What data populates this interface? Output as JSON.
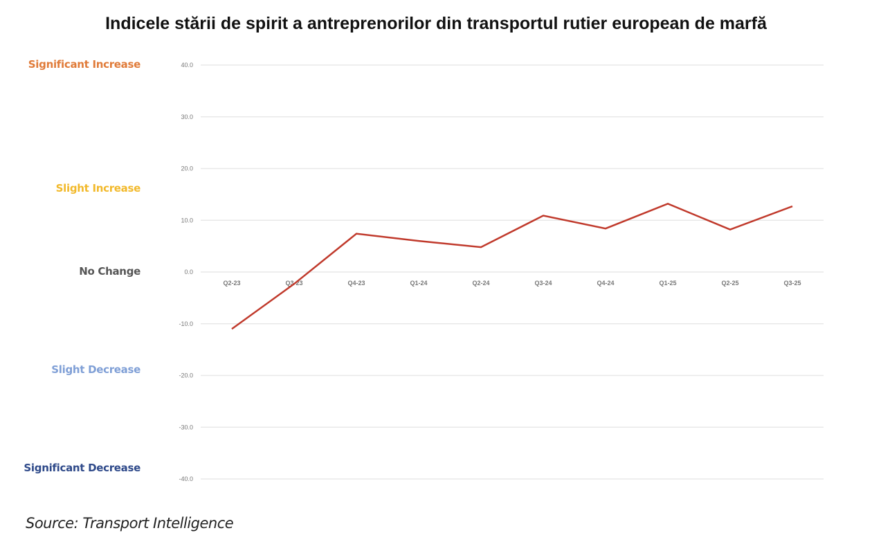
{
  "chart_data": {
    "type": "line",
    "title": "Indicele stării de spirit a antreprenorilor din transportul rutier european de marfă",
    "categories": [
      "Q2-23",
      "Q3-23",
      "Q4-23",
      "Q1-24",
      "Q2-24",
      "Q3-24",
      "Q4-24",
      "Q1-25",
      "Q2-25",
      "Q3-25"
    ],
    "series": [
      {
        "values": [
          -11.0,
          -2.3,
          7.4,
          6.0,
          4.8,
          10.9,
          8.4,
          13.2,
          8.2,
          12.7
        ],
        "color": "#c0392b"
      }
    ],
    "ylim": [
      -40,
      40
    ],
    "yticks": [
      "40.0",
      "30.0",
      "20.0",
      "10.0",
      "0.0",
      "-10.0",
      "-20.0",
      "-30.0",
      "-40.0"
    ],
    "grid": true,
    "levels": [
      {
        "label": "Significant Increase",
        "value": 40,
        "color": "#e07b39"
      },
      {
        "label": "Slight Increase",
        "value": 16,
        "color": "#f2b92b"
      },
      {
        "label": "No Change",
        "value": 0,
        "color": "#555555"
      },
      {
        "label": "Slight Decrease",
        "value": -19,
        "color": "#7f9fd6"
      },
      {
        "label": "Significant Decrease",
        "value": -38,
        "color": "#2f4a8a"
      }
    ],
    "source": "Source: Transport Intelligence"
  }
}
